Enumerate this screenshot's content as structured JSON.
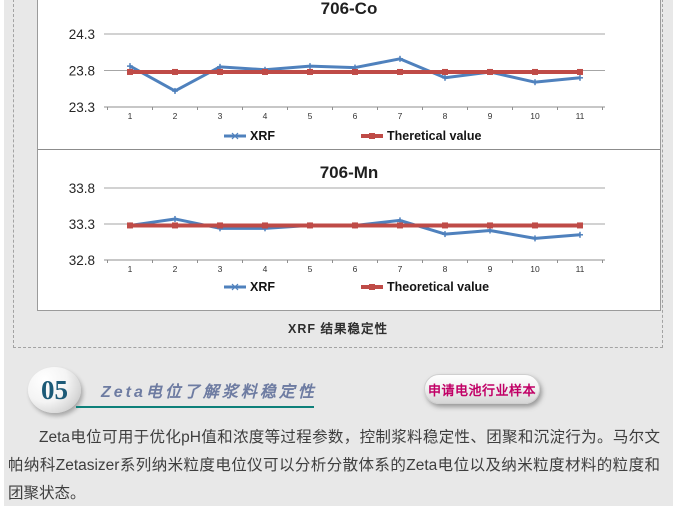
{
  "figure": {
    "caption": "XRF 结果稳定性"
  },
  "chart_data": [
    {
      "type": "line",
      "title": "706-Co",
      "x": [
        1,
        2,
        3,
        4,
        5,
        6,
        7,
        8,
        9,
        10,
        11
      ],
      "series": [
        {
          "name": "XRF",
          "color": "#4f81bd",
          "marker": "plus",
          "line_width": 3,
          "values": [
            23.86,
            23.52,
            23.85,
            23.81,
            23.86,
            23.84,
            23.96,
            23.7,
            23.78,
            23.64,
            23.7
          ]
        },
        {
          "name": "Theretical value",
          "color": "#bf4b47",
          "marker": "square",
          "line_width": 4,
          "values": [
            23.78,
            23.78,
            23.78,
            23.78,
            23.78,
            23.78,
            23.78,
            23.78,
            23.78,
            23.78,
            23.78
          ]
        }
      ],
      "ylim": [
        23.3,
        24.3
      ],
      "yticks": [
        "24.3",
        "23.8",
        "23.3"
      ],
      "grid": true,
      "legend_position": "bottom"
    },
    {
      "type": "line",
      "title": "706-Mn",
      "x": [
        1,
        2,
        3,
        4,
        5,
        6,
        7,
        8,
        9,
        10,
        11
      ],
      "series": [
        {
          "name": "XRF",
          "color": "#4f81bd",
          "marker": "plus",
          "line_width": 3,
          "values": [
            33.28,
            33.37,
            33.24,
            33.24,
            33.28,
            33.28,
            33.35,
            33.16,
            33.21,
            33.1,
            33.15
          ]
        },
        {
          "name": "Theoretical value",
          "color": "#bf4b47",
          "marker": "square",
          "line_width": 4,
          "values": [
            33.28,
            33.28,
            33.28,
            33.28,
            33.28,
            33.28,
            33.28,
            33.28,
            33.28,
            33.28,
            33.28
          ]
        }
      ],
      "ylim": [
        32.8,
        33.8
      ],
      "yticks": [
        "33.8",
        "33.3",
        "32.8"
      ],
      "grid": true,
      "legend_position": "bottom"
    }
  ],
  "section": {
    "number": "05",
    "title": "Zeta电位了解浆料稳定性",
    "button_label": "申请电池行业样本"
  },
  "colors": {
    "xrf_blue": "#4f81bd",
    "theoretical_red": "#bf4b47",
    "heading_text": "#6e7ca2",
    "underline_teal": "#0e807a",
    "badge_number": "#1c5a77",
    "button_text": "#c10066"
  },
  "paragraph": "Zeta电位可用于优化pH值和浓度等过程参数，控制浆料稳定性、团聚和沉淀行为。马尔文帕纳科Zetasizer系列纳米粒度电位仪可以分析分散体系的Zeta电位以及纳米粒度材料的粒度和团聚状态。"
}
